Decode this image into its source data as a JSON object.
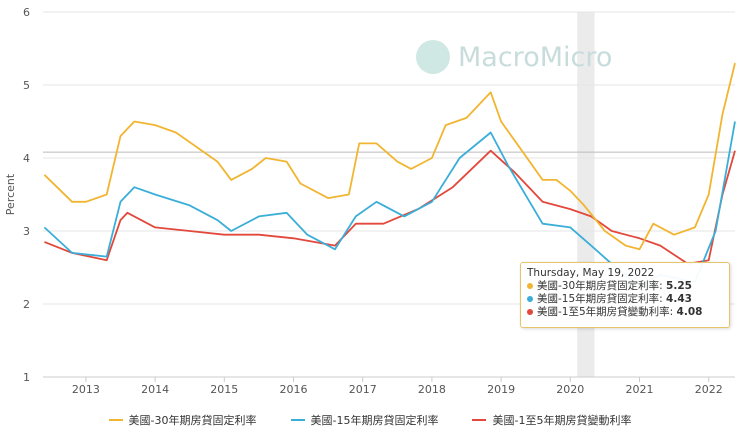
{
  "watermark": "MacroMicro",
  "chart_data": {
    "type": "line",
    "title": "",
    "xlabel": "",
    "ylabel": "Percent",
    "xlim": [
      2012.38,
      2022.38
    ],
    "ylim": [
      1,
      6
    ],
    "x_ticks": [
      "2013",
      "2014",
      "2015",
      "2016",
      "2017",
      "2018",
      "2019",
      "2020",
      "2021",
      "2022"
    ],
    "y_ticks": [
      "1",
      "2",
      "3",
      "4",
      "5",
      "6"
    ],
    "grid": "horizontal",
    "legend": "bottom",
    "shaded_period": [
      2020.1,
      2020.35
    ],
    "series": [
      {
        "name": "美國-30年期房貸固定利率",
        "color": "#f2b531",
        "points": [
          [
            2012.4,
            3.77
          ],
          [
            2012.8,
            3.4
          ],
          [
            2013.0,
            3.4
          ],
          [
            2013.3,
            3.5
          ],
          [
            2013.5,
            4.3
          ],
          [
            2013.7,
            4.5
          ],
          [
            2014.0,
            4.45
          ],
          [
            2014.3,
            4.35
          ],
          [
            2014.6,
            4.15
          ],
          [
            2014.9,
            3.95
          ],
          [
            2015.1,
            3.7
          ],
          [
            2015.4,
            3.85
          ],
          [
            2015.6,
            4.0
          ],
          [
            2015.9,
            3.95
          ],
          [
            2016.1,
            3.65
          ],
          [
            2016.5,
            3.45
          ],
          [
            2016.8,
            3.5
          ],
          [
            2016.95,
            4.2
          ],
          [
            2017.2,
            4.2
          ],
          [
            2017.5,
            3.95
          ],
          [
            2017.7,
            3.85
          ],
          [
            2018.0,
            4.0
          ],
          [
            2018.2,
            4.45
          ],
          [
            2018.5,
            4.55
          ],
          [
            2018.85,
            4.9
          ],
          [
            2019.0,
            4.5
          ],
          [
            2019.3,
            4.1
          ],
          [
            2019.6,
            3.7
          ],
          [
            2019.8,
            3.7
          ],
          [
            2020.0,
            3.55
          ],
          [
            2020.2,
            3.35
          ],
          [
            2020.5,
            3.0
          ],
          [
            2020.8,
            2.8
          ],
          [
            2021.0,
            2.75
          ],
          [
            2021.2,
            3.1
          ],
          [
            2021.5,
            2.95
          ],
          [
            2021.8,
            3.05
          ],
          [
            2022.0,
            3.5
          ],
          [
            2022.2,
            4.6
          ],
          [
            2022.38,
            5.3
          ]
        ]
      },
      {
        "name": "美國-15年期房貸固定利率",
        "color": "#3aaed8",
        "points": [
          [
            2012.4,
            3.05
          ],
          [
            2012.8,
            2.7
          ],
          [
            2013.3,
            2.65
          ],
          [
            2013.5,
            3.4
          ],
          [
            2013.7,
            3.6
          ],
          [
            2014.0,
            3.5
          ],
          [
            2014.5,
            3.35
          ],
          [
            2014.9,
            3.15
          ],
          [
            2015.1,
            3.0
          ],
          [
            2015.5,
            3.2
          ],
          [
            2015.9,
            3.25
          ],
          [
            2016.2,
            2.95
          ],
          [
            2016.6,
            2.75
          ],
          [
            2016.9,
            3.2
          ],
          [
            2017.2,
            3.4
          ],
          [
            2017.6,
            3.2
          ],
          [
            2018.0,
            3.4
          ],
          [
            2018.4,
            4.0
          ],
          [
            2018.85,
            4.35
          ],
          [
            2019.1,
            3.9
          ],
          [
            2019.6,
            3.1
          ],
          [
            2020.0,
            3.05
          ],
          [
            2020.3,
            2.8
          ],
          [
            2020.6,
            2.55
          ],
          [
            2021.0,
            2.25
          ],
          [
            2021.3,
            2.4
          ],
          [
            2021.8,
            2.3
          ],
          [
            2022.1,
            3.0
          ],
          [
            2022.38,
            4.5
          ]
        ]
      },
      {
        "name": "美國-1至5年期房貸變動利率",
        "color": "#e2483b",
        "points": [
          [
            2012.4,
            2.85
          ],
          [
            2012.8,
            2.7
          ],
          [
            2013.3,
            2.6
          ],
          [
            2013.5,
            3.15
          ],
          [
            2013.6,
            3.25
          ],
          [
            2014.0,
            3.05
          ],
          [
            2014.5,
            3.0
          ],
          [
            2015.0,
            2.95
          ],
          [
            2015.5,
            2.95
          ],
          [
            2016.0,
            2.9
          ],
          [
            2016.6,
            2.8
          ],
          [
            2016.9,
            3.1
          ],
          [
            2017.3,
            3.1
          ],
          [
            2017.8,
            3.3
          ],
          [
            2018.3,
            3.6
          ],
          [
            2018.85,
            4.1
          ],
          [
            2019.2,
            3.8
          ],
          [
            2019.6,
            3.4
          ],
          [
            2020.0,
            3.3
          ],
          [
            2020.3,
            3.2
          ],
          [
            2020.6,
            3.0
          ],
          [
            2021.0,
            2.9
          ],
          [
            2021.3,
            2.8
          ],
          [
            2021.7,
            2.55
          ],
          [
            2022.0,
            2.6
          ],
          [
            2022.2,
            3.5
          ],
          [
            2022.38,
            4.1
          ]
        ]
      }
    ],
    "tooltip": {
      "date": "Thursday, May 19, 2022",
      "rows": [
        {
          "label": "美國-30年期房貸固定利率: ",
          "value": "5.25"
        },
        {
          "label": "美國-15年期房貸固定利率: ",
          "value": "4.43"
        },
        {
          "label": "美國-1至5年期房貸變動利率: ",
          "value": "4.08"
        }
      ]
    }
  }
}
